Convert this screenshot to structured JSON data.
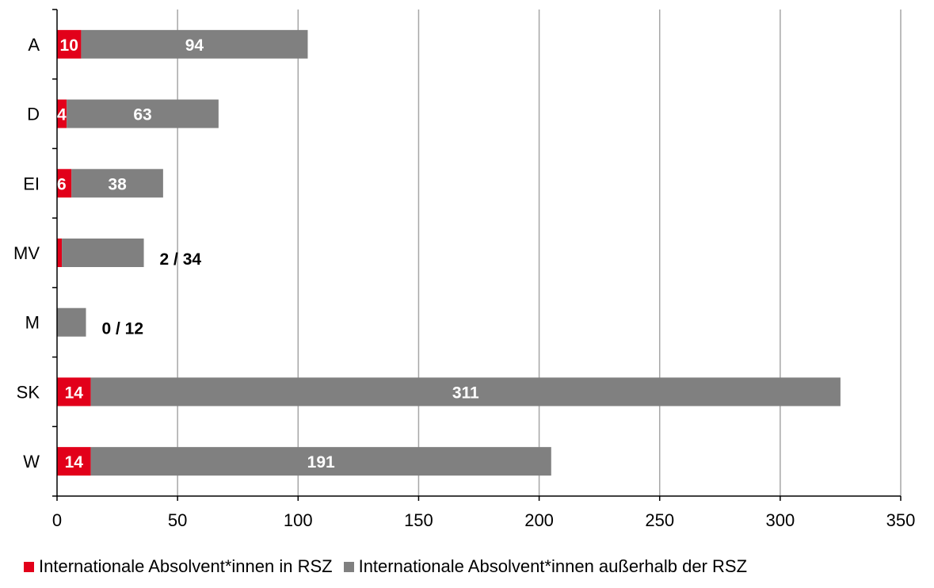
{
  "chart_data": {
    "type": "bar",
    "orientation": "horizontal",
    "stacked": true,
    "categories": [
      "A",
      "D",
      "EI",
      "MV",
      "M",
      "SK",
      "W"
    ],
    "series": [
      {
        "name": "Internationale Absolvent*innen in RSZ",
        "values": [
          10,
          4,
          6,
          2,
          0,
          14,
          14
        ],
        "color": "#e2001a"
      },
      {
        "name": "Internationale Absolvent*innen außerhalb der RSZ",
        "values": [
          94,
          63,
          38,
          34,
          12,
          311,
          191
        ],
        "color": "#808080"
      }
    ],
    "bar_labels": [
      {
        "category": "A",
        "inside": [
          "10",
          "94"
        ]
      },
      {
        "category": "D",
        "inside": [
          "4",
          "63"
        ]
      },
      {
        "category": "EI",
        "inside": [
          "6",
          "38"
        ]
      },
      {
        "category": "MV",
        "outside": "2 / 34"
      },
      {
        "category": "M",
        "outside": "0 / 12"
      },
      {
        "category": "SK",
        "inside": [
          "14",
          "311"
        ]
      },
      {
        "category": "W",
        "inside": [
          "14",
          "191"
        ]
      }
    ],
    "x_ticks": [
      "0",
      "50",
      "100",
      "150",
      "200",
      "250",
      "300",
      "350"
    ],
    "xlim": [
      0,
      350
    ],
    "grid": "vertical",
    "legend_position": "bottom"
  }
}
